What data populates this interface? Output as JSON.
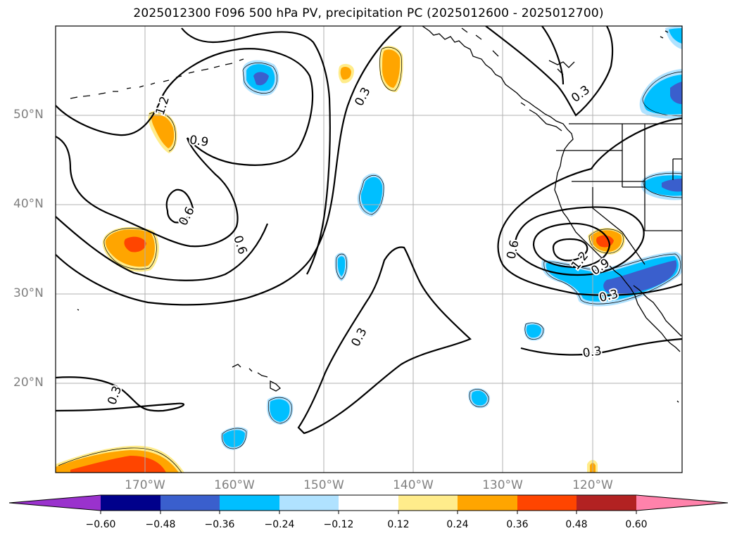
{
  "title": "2025012300 F096 500 hPa PV, precipitation PC (2025012600 - 2025012700)",
  "map": {
    "projection": "PlateCarree",
    "extent": {
      "lon_min": -180,
      "lon_max": -110,
      "lat_min": 10,
      "lat_max": 60
    },
    "lat_ticks": [
      {
        "value": 20,
        "label": "20°N"
      },
      {
        "value": 30,
        "label": "30°N"
      },
      {
        "value": 40,
        "label": "40°N"
      },
      {
        "value": 50,
        "label": "50°N"
      }
    ],
    "lon_ticks": [
      {
        "value": -170,
        "label": "170°W"
      },
      {
        "value": -160,
        "label": "160°W"
      },
      {
        "value": -150,
        "label": "150°W"
      },
      {
        "value": -140,
        "label": "140°W"
      },
      {
        "value": -130,
        "label": "130°W"
      },
      {
        "value": -120,
        "label": "120°W"
      }
    ],
    "grid": true,
    "contour_labels": [
      "0.3",
      "0.3",
      "0.3",
      "0.3",
      "0.3",
      "0.3",
      "0.6",
      "0.6",
      "0.6",
      "0.9",
      "0.9",
      "1.2",
      "1.2"
    ]
  },
  "colorbar": {
    "bounds": [
      -0.6,
      -0.48,
      -0.36,
      -0.24,
      -0.12,
      0.12,
      0.24,
      0.36,
      0.48,
      0.6
    ],
    "colors": [
      "#9a32cd",
      "#00008b",
      "#3a5fcd",
      "#00bfff",
      "#b0e2ff",
      "#ffffff",
      "#ffec8b",
      "#ffa500",
      "#ff4500",
      "#b22222",
      "#ff82ab"
    ],
    "tick_labels": [
      "−0.60",
      "−0.48",
      "−0.36",
      "−0.24",
      "−0.12",
      "0.12",
      "0.24",
      "0.36",
      "0.48",
      "0.60"
    ],
    "extend": "both"
  }
}
